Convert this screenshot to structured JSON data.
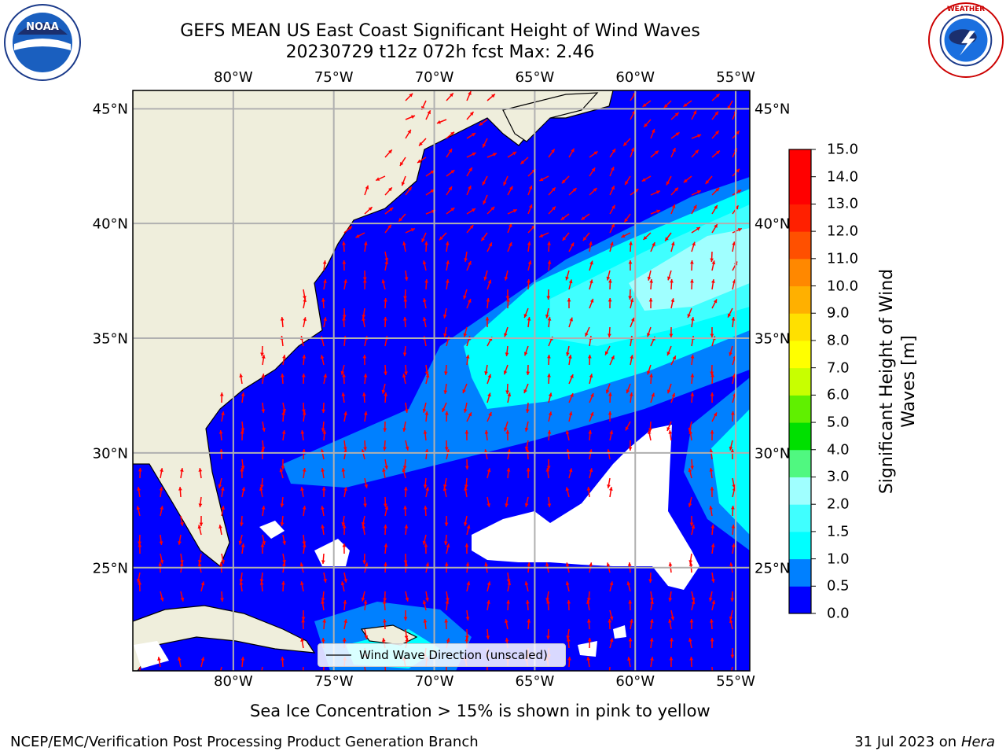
{
  "title_line1": "GEFS MEAN US East Coast Significant Height of Wind Waves",
  "title_line2": "20230729 t12z 072h fcst   Max: 2.46",
  "logos": {
    "left": "NOAA",
    "right": "NATIONAL WEATHER SERVICE"
  },
  "map": {
    "lon_labels": [
      "80°W",
      "75°W",
      "70°W",
      "65°W",
      "60°W",
      "55°W"
    ],
    "lat_labels": [
      "45°N",
      "40°N",
      "35°N",
      "30°N",
      "25°N"
    ],
    "lon_values": [
      -80,
      -75,
      -70,
      -65,
      -60,
      -55
    ],
    "lat_values": [
      45,
      40,
      35,
      30,
      25
    ],
    "lon_range": [
      -85,
      -54.3
    ],
    "lat_range": [
      20.5,
      45.8
    ]
  },
  "legend_label": "Wind Wave Direction (unscaled)",
  "colorbar": {
    "label": "Significant Height of Wind Waves [m]",
    "label_line1": "Significant Height of Wind",
    "label_line2": "Waves [m]",
    "ticks": [
      "0.0",
      "0.5",
      "1.0",
      "1.5",
      "2.0",
      "3.0",
      "4.0",
      "5.0",
      "6.0",
      "7.0",
      "8.0",
      "9.0",
      "10.0",
      "11.0",
      "12.0",
      "13.0",
      "14.0",
      "15.0"
    ],
    "colors": [
      "#0000ff",
      "#0080ff",
      "#00ffff",
      "#40ffff",
      "#a0ffff",
      "#50f880",
      "#00e000",
      "#60f000",
      "#c8ff00",
      "#ffff00",
      "#ffe000",
      "#ffb000",
      "#ff8800",
      "#ff5000",
      "#ff2000",
      "#ff0000"
    ]
  },
  "colors": {
    "ocean": "#0000ff",
    "land": "#efeedc",
    "grid": "#b0b0b0",
    "arrow": "#ff0000"
  },
  "ice_note": "Sea Ice Concentration > 15% is shown in pink to yellow",
  "footer_left": "NCEP/EMC/Verification Post Processing Product Generation Branch",
  "footer_right_date": "31 Jul 2023 on ",
  "footer_right_machine": "Hera"
}
